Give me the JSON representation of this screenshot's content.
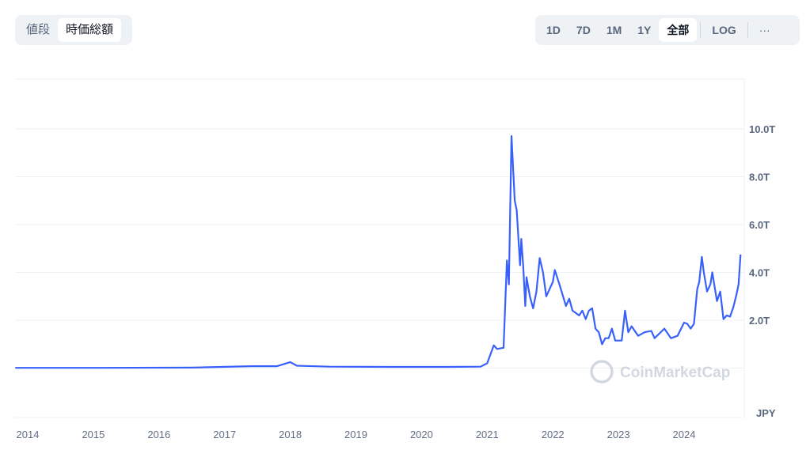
{
  "toggle": {
    "items": [
      {
        "label": "値段",
        "active": false
      },
      {
        "label": "時価総額",
        "active": true
      }
    ]
  },
  "range": {
    "items": [
      {
        "label": "1D"
      },
      {
        "label": "7D"
      },
      {
        "label": "1M"
      },
      {
        "label": "1Y"
      },
      {
        "label": "全部",
        "active": true
      }
    ],
    "log_label": "LOG",
    "more_label": "···"
  },
  "watermark": "CoinMarketCap",
  "chart_data": {
    "type": "line",
    "currency_label": "JPY",
    "line_color": "#3861fb",
    "y_ticks": [
      "10.0T",
      "8.0T",
      "6.0T",
      "4.0T",
      "2.0T"
    ],
    "y_tick_values": [
      10,
      8,
      6,
      4,
      2
    ],
    "x_ticks": [
      "2014",
      "2015",
      "2016",
      "2017",
      "2018",
      "2019",
      "2020",
      "2021",
      "2022",
      "2023",
      "2024"
    ],
    "grid": true,
    "series": [
      {
        "x": [
          2013.81,
          2015.0,
          2016.5,
          2017.4,
          2017.8,
          2018.0,
          2018.1,
          2018.6,
          2019.5,
          2020.4,
          2020.9,
          2021.0,
          2021.1,
          2021.15,
          2021.25,
          2021.3,
          2021.33,
          2021.37,
          2021.42,
          2021.45,
          2021.5,
          2021.52,
          2021.55,
          2021.58,
          2021.6,
          2021.65,
          2021.7,
          2021.75,
          2021.8,
          2021.85,
          2021.9,
          2022.0,
          2022.03,
          2022.1,
          2022.2,
          2022.25,
          2022.3,
          2022.4,
          2022.45,
          2022.5,
          2022.55,
          2022.6,
          2022.65,
          2022.7,
          2022.75,
          2022.8,
          2022.85,
          2022.9,
          2022.95,
          2023.0,
          2023.05,
          2023.1,
          2023.15,
          2023.2,
          2023.3,
          2023.4,
          2023.5,
          2023.55,
          2023.7,
          2023.8,
          2023.9,
          2024.0,
          2024.05,
          2024.1,
          2024.15,
          2024.2,
          2024.23,
          2024.27,
          2024.3,
          2024.35,
          2024.4,
          2024.43,
          2024.5,
          2024.55,
          2024.6,
          2024.65,
          2024.7,
          2024.75,
          2024.8,
          2024.83,
          2024.86
        ],
        "y": [
          0.01,
          0.01,
          0.02,
          0.08,
          0.08,
          0.25,
          0.1,
          0.06,
          0.05,
          0.05,
          0.06,
          0.2,
          0.95,
          0.8,
          0.85,
          4.5,
          3.5,
          9.7,
          7.0,
          6.6,
          4.3,
          5.4,
          4.2,
          2.6,
          3.8,
          3.0,
          2.5,
          3.2,
          4.6,
          4.0,
          3.0,
          3.6,
          4.1,
          3.5,
          2.6,
          2.9,
          2.4,
          2.2,
          2.4,
          2.05,
          2.4,
          2.5,
          1.65,
          1.5,
          1.0,
          1.25,
          1.25,
          1.65,
          1.15,
          1.15,
          1.15,
          2.4,
          1.5,
          1.75,
          1.35,
          1.5,
          1.55,
          1.25,
          1.65,
          1.25,
          1.35,
          1.9,
          1.85,
          1.65,
          1.85,
          3.3,
          3.6,
          4.65,
          4.0,
          3.2,
          3.5,
          4.0,
          2.8,
          3.2,
          2.05,
          2.2,
          2.15,
          2.55,
          3.1,
          3.5,
          4.75
        ]
      }
    ]
  }
}
